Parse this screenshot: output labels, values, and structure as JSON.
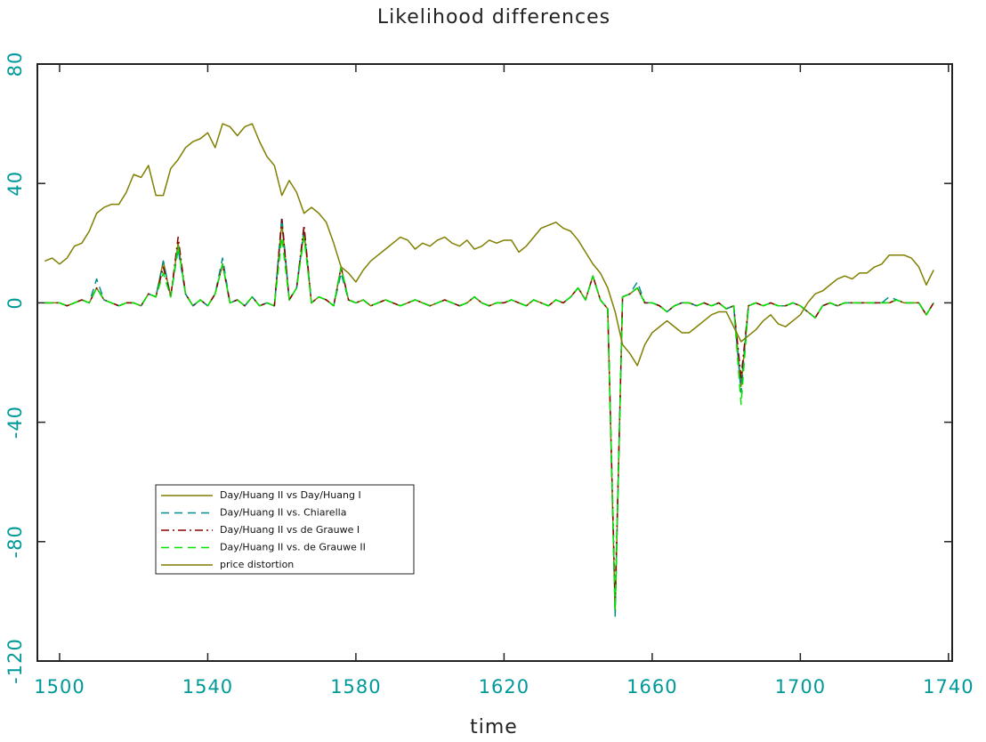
{
  "chart_data": {
    "type": "line",
    "title": "Likelihood differences",
    "xlabel": "time",
    "xlim": [
      1494,
      1741
    ],
    "ylim": [
      -120,
      80
    ],
    "xticks": [
      1500,
      1540,
      1580,
      1620,
      1660,
      1700,
      1740
    ],
    "yticks": [
      -120,
      -80,
      -40,
      0,
      40,
      80
    ],
    "legend": "lower-left",
    "axis_color": "#009999",
    "x": [
      1496,
      1498,
      1500,
      1502,
      1504,
      1506,
      1508,
      1510,
      1512,
      1514,
      1516,
      1518,
      1520,
      1522,
      1524,
      1526,
      1528,
      1530,
      1532,
      1534,
      1536,
      1538,
      1540,
      1542,
      1544,
      1546,
      1548,
      1550,
      1552,
      1554,
      1556,
      1558,
      1560,
      1562,
      1564,
      1566,
      1568,
      1570,
      1572,
      1574,
      1576,
      1578,
      1580,
      1582,
      1584,
      1586,
      1588,
      1590,
      1592,
      1594,
      1596,
      1598,
      1600,
      1602,
      1604,
      1606,
      1608,
      1610,
      1612,
      1614,
      1616,
      1618,
      1620,
      1622,
      1624,
      1626,
      1628,
      1630,
      1632,
      1634,
      1636,
      1638,
      1640,
      1642,
      1644,
      1646,
      1648,
      1650,
      1652,
      1654,
      1656,
      1658,
      1660,
      1662,
      1664,
      1666,
      1668,
      1670,
      1672,
      1674,
      1676,
      1678,
      1680,
      1682,
      1684,
      1686,
      1688,
      1690,
      1692,
      1694,
      1696,
      1698,
      1700,
      1702,
      1704,
      1706,
      1708,
      1710,
      1712,
      1714,
      1716,
      1718,
      1720,
      1722,
      1724,
      1726,
      1728,
      1730,
      1732,
      1734,
      1736
    ],
    "series": [
      {
        "name": "Day/Huang II vs Day/Huang I",
        "color": "#7f7f00",
        "dash": "solid",
        "values": [
          0,
          0,
          0,
          -1,
          0,
          1,
          0,
          5,
          1,
          0,
          -1,
          0,
          0,
          -1,
          3,
          2,
          14,
          2,
          20,
          3,
          -1,
          1,
          -1,
          3,
          13,
          0,
          1,
          -1,
          2,
          -1,
          0,
          -1,
          27,
          1,
          5,
          24,
          0,
          2,
          1,
          -1,
          12,
          1,
          0,
          1,
          -1,
          0,
          1,
          0,
          -1,
          0,
          1,
          0,
          -1,
          0,
          1,
          0,
          -1,
          0,
          2,
          0,
          -1,
          0,
          0,
          1,
          0,
          -1,
          1,
          0,
          -1,
          1,
          0,
          2,
          5,
          1,
          9,
          1,
          -2,
          -104,
          2,
          3,
          5,
          0,
          0,
          -1,
          -3,
          -1,
          0,
          0,
          -1,
          0,
          -1,
          0,
          -2,
          -1,
          -28,
          -1,
          0,
          -1,
          0,
          -1,
          -1,
          0,
          -1,
          -3,
          -5,
          -1,
          0,
          -1,
          0,
          0,
          0,
          0,
          0,
          0,
          0,
          1,
          0,
          0,
          0,
          -4,
          0
        ]
      },
      {
        "name": "Day/Huang II vs. Chiarella",
        "color": "#008b8b",
        "dash": "dashed",
        "values": [
          0,
          0,
          0,
          -1,
          0,
          1,
          0,
          8,
          1,
          0,
          -1,
          0,
          0,
          -1,
          3,
          2,
          14,
          2,
          18,
          3,
          -1,
          1,
          -1,
          3,
          15,
          0,
          1,
          -1,
          2,
          -1,
          0,
          -1,
          29,
          1,
          5,
          25,
          0,
          2,
          1,
          -1,
          10,
          1,
          0,
          1,
          -1,
          0,
          1,
          0,
          -1,
          0,
          1,
          0,
          -1,
          0,
          1,
          0,
          -1,
          0,
          2,
          0,
          -1,
          0,
          0,
          1,
          0,
          -1,
          1,
          0,
          -1,
          1,
          0,
          2,
          5,
          1,
          9,
          1,
          -2,
          -105,
          2,
          3,
          7,
          0,
          0,
          -1,
          -3,
          -1,
          0,
          0,
          -1,
          0,
          -1,
          0,
          -2,
          -1,
          -30,
          -1,
          0,
          -1,
          0,
          -1,
          -1,
          0,
          -1,
          -3,
          -5,
          -1,
          0,
          -1,
          0,
          0,
          0,
          0,
          0,
          0,
          2,
          1,
          0,
          0,
          0,
          -4,
          0
        ]
      },
      {
        "name": "Day/Huang II vs de Grauwe I",
        "color": "#8b0000",
        "dash": "dashdot",
        "values": [
          0,
          0,
          0,
          -1,
          0,
          1,
          0,
          5,
          1,
          0,
          -1,
          0,
          0,
          -1,
          3,
          2,
          12,
          2,
          22,
          3,
          -1,
          1,
          -1,
          3,
          13,
          0,
          1,
          -1,
          2,
          -1,
          0,
          -1,
          28,
          1,
          5,
          26,
          0,
          2,
          1,
          -1,
          12,
          1,
          0,
          1,
          -1,
          0,
          1,
          0,
          -1,
          0,
          1,
          0,
          -1,
          0,
          1,
          0,
          -1,
          0,
          2,
          0,
          -1,
          0,
          0,
          1,
          0,
          -1,
          1,
          0,
          -1,
          1,
          0,
          2,
          5,
          1,
          9,
          1,
          -2,
          -100,
          2,
          3,
          5,
          0,
          0,
          -1,
          -3,
          -1,
          0,
          0,
          -1,
          0,
          -1,
          0,
          -2,
          -1,
          -25,
          -1,
          0,
          -1,
          0,
          -1,
          -1,
          0,
          -1,
          -3,
          -5,
          -1,
          0,
          -1,
          0,
          0,
          0,
          0,
          0,
          0,
          0,
          1,
          0,
          0,
          0,
          -4,
          0
        ]
      },
      {
        "name": "Day/Huang II vs. de Grauwe II",
        "color": "#00e600",
        "dash": "dashed",
        "values": [
          0,
          0,
          0,
          -1,
          0,
          1,
          0,
          5,
          1,
          0,
          -1,
          0,
          0,
          -1,
          3,
          2,
          10,
          2,
          19,
          3,
          -1,
          1,
          -1,
          3,
          13,
          0,
          1,
          -1,
          2,
          -1,
          0,
          -1,
          22,
          1,
          5,
          22,
          0,
          2,
          1,
          -1,
          12,
          1,
          0,
          1,
          -1,
          0,
          1,
          0,
          -1,
          0,
          1,
          0,
          -1,
          0,
          1,
          0,
          -1,
          0,
          2,
          0,
          -1,
          0,
          0,
          1,
          0,
          -1,
          1,
          0,
          -1,
          1,
          0,
          2,
          5,
          1,
          9,
          1,
          -2,
          -103,
          2,
          3,
          5,
          0,
          0,
          -1,
          -3,
          -1,
          0,
          0,
          -1,
          0,
          -1,
          0,
          -2,
          -1,
          -34,
          -1,
          0,
          -1,
          0,
          -1,
          -1,
          0,
          -1,
          -3,
          -5,
          -1,
          0,
          -1,
          0,
          0,
          0,
          0,
          0,
          0,
          0,
          1,
          0,
          0,
          0,
          -4,
          0
        ]
      },
      {
        "name": "price distortion",
        "color": "#7f7f00",
        "dash": "solid",
        "values": [
          14,
          15,
          13,
          15,
          19,
          20,
          24,
          30,
          32,
          33,
          33,
          37,
          43,
          42,
          46,
          36,
          36,
          45,
          48,
          52,
          54,
          55,
          57,
          52,
          60,
          59,
          56,
          59,
          60,
          54,
          49,
          46,
          36,
          41,
          37,
          30,
          32,
          30,
          27,
          20,
          12,
          10,
          7,
          11,
          14,
          16,
          18,
          20,
          22,
          21,
          18,
          20,
          19,
          21,
          22,
          20,
          19,
          21,
          18,
          19,
          21,
          20,
          21,
          21,
          17,
          19,
          22,
          25,
          26,
          27,
          25,
          24,
          21,
          17,
          13,
          10,
          5,
          -3,
          -14,
          -17,
          -21,
          -14,
          -10,
          -8,
          -6,
          -8,
          -10,
          -10,
          -8,
          -6,
          -4,
          -3,
          -3,
          -8,
          -13,
          -11,
          -9,
          -6,
          -4,
          -7,
          -8,
          -6,
          -4,
          0,
          3,
          4,
          6,
          8,
          9,
          8,
          10,
          10,
          12,
          13,
          16,
          16,
          16,
          15,
          12,
          6,
          11
        ]
      }
    ]
  }
}
